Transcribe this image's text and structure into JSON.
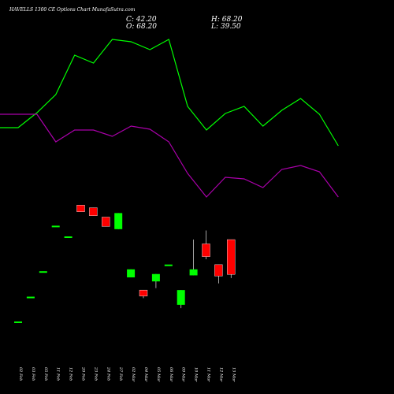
{
  "header": {
    "title": "HAVELLS 1300  CE Options  Chart MunafaSutra.com",
    "close": "C: 42.20",
    "open": "O: 68.20",
    "high": "H: 68.20",
    "low": "L: 39.50"
  },
  "colors": {
    "background": "#000000",
    "up": "#00ff00",
    "down": "#ff0000",
    "upper_line": "#00ff00",
    "lower_line": "#aa00aa",
    "text": "#ffffff"
  },
  "chart_data": {
    "type": "candlestick",
    "categories": [
      "02 Feb",
      "03 Feb",
      "05 Feb",
      "11 Feb",
      "12 Feb",
      "20 Feb",
      "23 Feb",
      "24 Feb",
      "27 Feb",
      "02 Mar",
      "04 Mar",
      "05 Mar",
      "06 Mar",
      "09 Mar",
      "10 Mar",
      "11 Mar",
      "12 Mar",
      "13 Mar"
    ],
    "candles": [
      {
        "o": 6.5,
        "h": 6.5,
        "l": 6.5,
        "c": 6.5,
        "dir": "up"
      },
      {
        "o": 25,
        "h": 25,
        "l": 25,
        "c": 25,
        "dir": "up"
      },
      {
        "o": 44,
        "h": 44,
        "l": 44,
        "c": 44,
        "dir": "up"
      },
      {
        "o": 78,
        "h": 78,
        "l": 78,
        "c": 78,
        "dir": "up"
      },
      {
        "o": 70,
        "h": 70,
        "l": 70,
        "c": 70,
        "dir": "up"
      },
      {
        "o": 94,
        "h": 94,
        "l": 89,
        "c": 89,
        "dir": "down"
      },
      {
        "o": 92,
        "h": 92,
        "l": 86,
        "c": 86,
        "dir": "down"
      },
      {
        "o": 85,
        "h": 85,
        "l": 78,
        "c": 78,
        "dir": "down"
      },
      {
        "o": 76,
        "h": 88,
        "l": 76,
        "c": 88,
        "dir": "up"
      },
      {
        "o": 40,
        "h": 46,
        "l": 40,
        "c": 46,
        "dir": "up"
      },
      {
        "o": 30.5,
        "h": 30.5,
        "l": 24.5,
        "c": 26,
        "dir": "down"
      },
      {
        "o": 37,
        "h": 42.5,
        "l": 32,
        "c": 42.5,
        "dir": "up"
      },
      {
        "o": 49,
        "h": 49,
        "l": 49,
        "c": 49,
        "dir": "up"
      },
      {
        "o": 19.5,
        "h": 30.5,
        "l": 17,
        "c": 30.5,
        "dir": "up"
      },
      {
        "o": 41.5,
        "h": 68.2,
        "l": 41.5,
        "c": 46,
        "dir": "up"
      },
      {
        "o": 65,
        "h": 75,
        "l": 53.5,
        "c": 55.5,
        "dir": "down"
      },
      {
        "o": 49.5,
        "h": 49.5,
        "l": 35.5,
        "c": 41,
        "dir": "down"
      },
      {
        "o": 68.2,
        "h": 68.2,
        "l": 39.5,
        "c": 42.2,
        "dir": "down"
      }
    ],
    "upper_band": [
      188,
      188,
      207,
      230,
      280,
      270,
      300,
      297,
      287,
      300,
      215,
      185,
      206,
      215,
      190,
      210,
      225,
      205,
      165
    ],
    "lower_band": [
      205,
      205,
      205,
      170,
      185,
      185,
      177,
      190,
      186,
      170,
      130,
      100,
      125,
      123,
      112,
      135,
      140,
      132,
      100
    ],
    "band_x": [
      "",
      "02 Feb",
      "03 Feb",
      "05 Feb",
      "11 Feb",
      "12 Feb",
      "20 Feb",
      "23 Feb",
      "24 Feb",
      "27 Feb",
      "02 Mar",
      "04 Mar",
      "05 Mar",
      "06 Mar",
      "09 Mar",
      "10 Mar",
      "11 Mar",
      "12 Mar",
      "13 Mar"
    ],
    "grid": false,
    "legend": "none"
  }
}
